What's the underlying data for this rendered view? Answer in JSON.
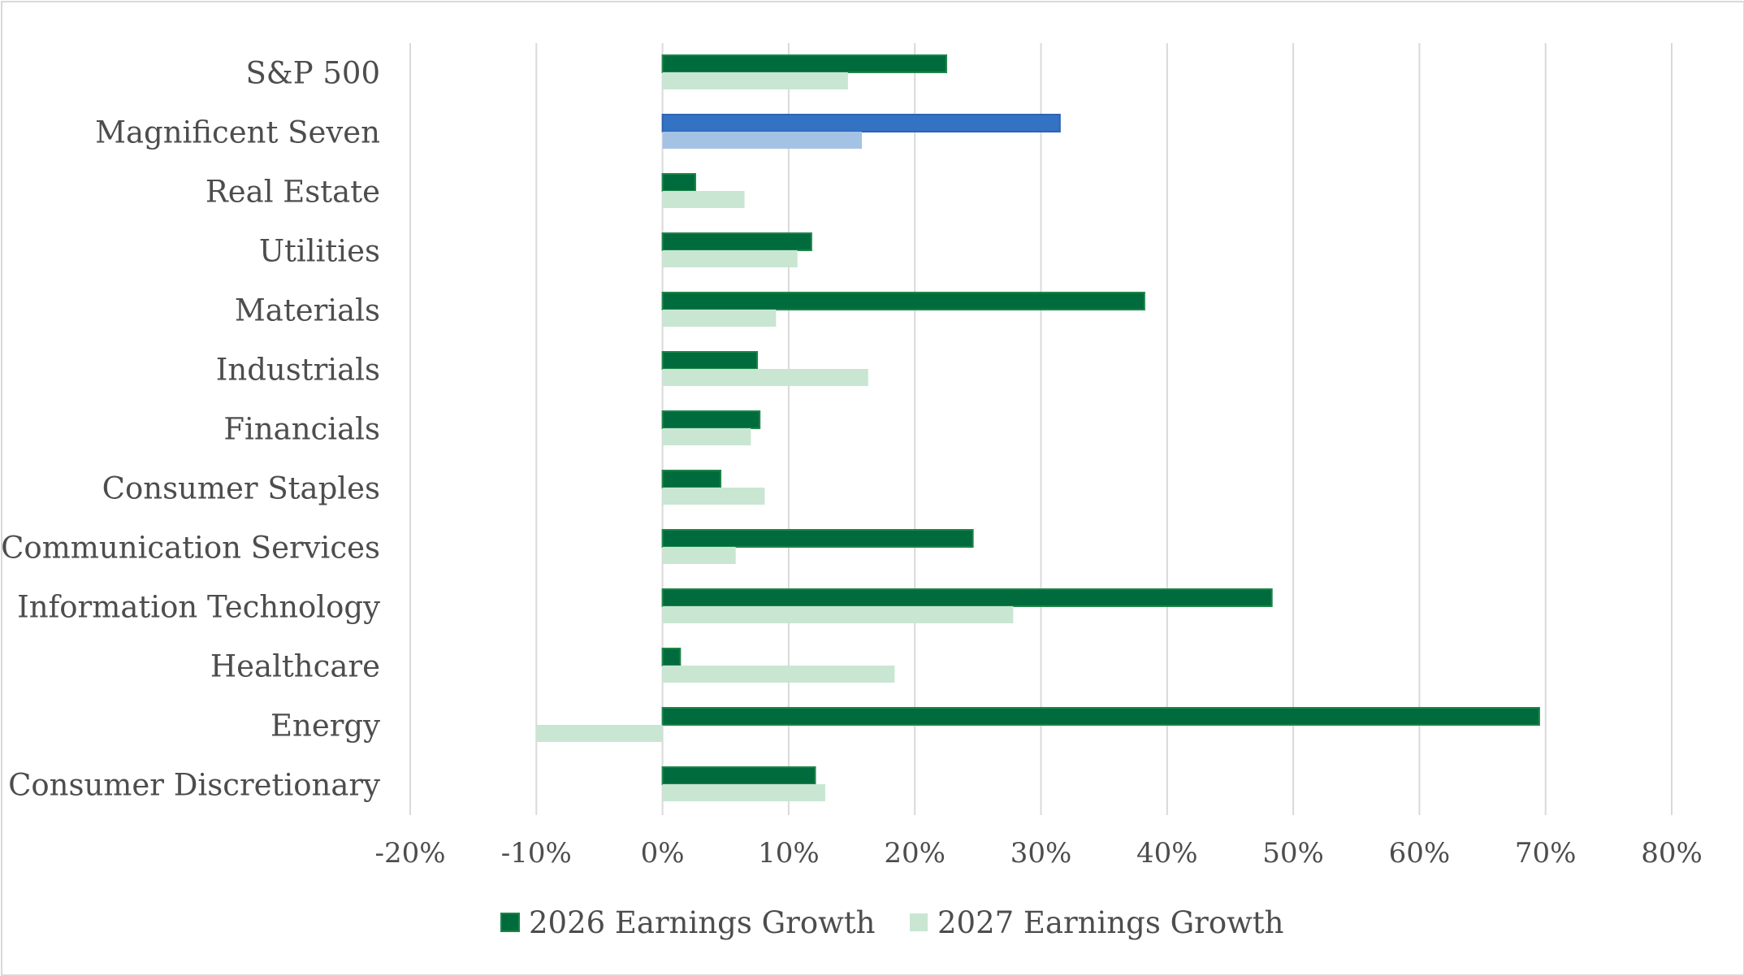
{
  "chart_data": {
    "type": "bar",
    "orientation": "horizontal",
    "categories": [
      "S&P 500",
      "Magnificent Seven",
      "Real Estate",
      "Utilities",
      "Materials",
      "Industrials",
      "Financials",
      "Consumer Staples",
      "Communication Services",
      "Information Technology",
      "Healthcare",
      "Energy",
      "Consumer Discretionary"
    ],
    "series": [
      {
        "name": "2026 Earnings Growth",
        "color": "#006b3c",
        "border": "#1e8449",
        "values": [
          22.5,
          31.5,
          2.6,
          11.8,
          38.2,
          7.5,
          7.7,
          4.6,
          24.6,
          48.3,
          1.4,
          69.5,
          12.1
        ]
      },
      {
        "name": "2027 Earnings Growth",
        "color": "#c8e6d2",
        "border": "#c8e6d2",
        "values": [
          14.7,
          15.8,
          6.5,
          10.7,
          9.0,
          16.3,
          7.0,
          8.1,
          5.8,
          27.8,
          18.4,
          -10.0,
          12.9
        ]
      }
    ],
    "highlight": {
      "category": "Magnificent Seven",
      "colors": [
        "#3472c4",
        "#a4c2e4"
      ],
      "border": "#2e63b0"
    },
    "xlim": [
      -20,
      80
    ],
    "xticks": [
      -20,
      -10,
      0,
      10,
      20,
      30,
      40,
      50,
      60,
      70,
      80
    ],
    "xtick_labels": [
      "-20%",
      "-10%",
      "0%",
      "10%",
      "20%",
      "30%",
      "40%",
      "50%",
      "60%",
      "70%",
      "80%"
    ],
    "title": "",
    "xlabel": "",
    "ylabel": "",
    "grid": "vertical",
    "legend_position": "bottom"
  }
}
